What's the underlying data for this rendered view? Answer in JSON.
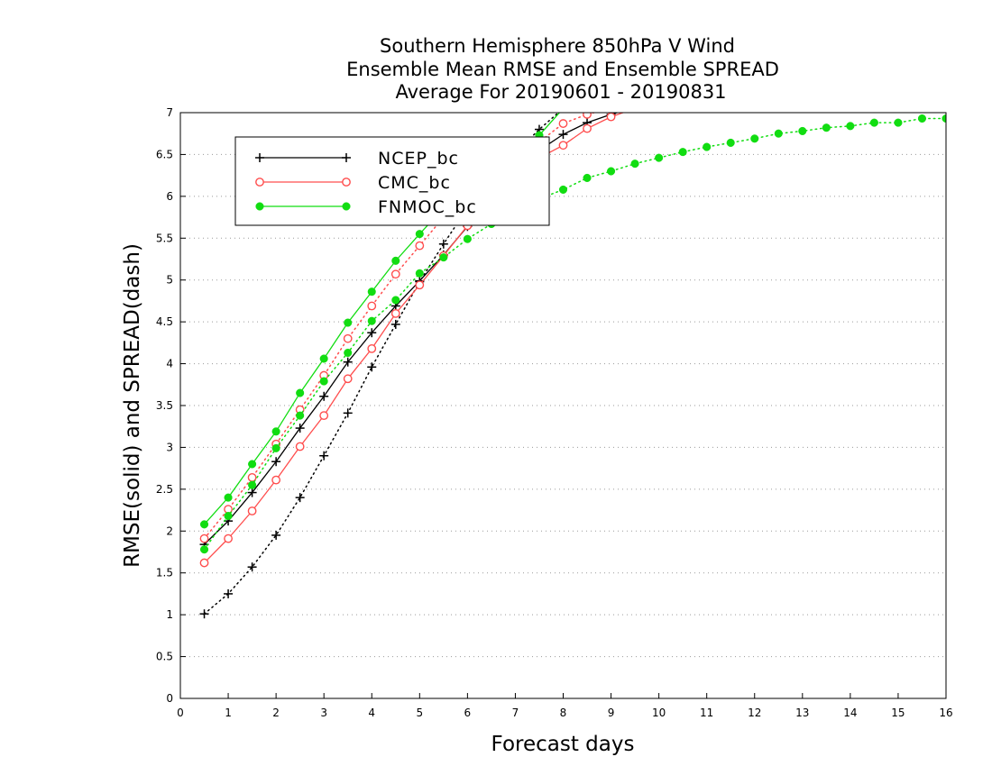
{
  "chart_data": {
    "type": "line",
    "title": [
      "Southern Hemisphere 850hPa V Wind",
      "Ensemble Mean RMSE and Ensemble SPREAD",
      "Average For 20190601 - 20190831"
    ],
    "xlabel": "Forecast days",
    "ylabel": "RMSE(solid) and SPREAD(dash)",
    "xlim": [
      0,
      16
    ],
    "ylim": [
      0,
      7
    ],
    "xticks": [
      0,
      1,
      2,
      3,
      4,
      5,
      6,
      7,
      8,
      9,
      10,
      11,
      12,
      13,
      14,
      15,
      16
    ],
    "xtick_labels": [
      "0",
      "1",
      "2",
      "3",
      "4",
      "5",
      "6",
      "7",
      "8",
      "9",
      "10",
      "11",
      "12",
      "13",
      "14",
      "15",
      "16"
    ],
    "yticks": [
      0,
      0.5,
      1,
      1.5,
      2,
      2.5,
      3,
      3.5,
      4,
      4.5,
      5,
      5.5,
      6,
      6.5,
      7
    ],
    "ytick_labels": [
      "0",
      "0.5",
      "1",
      "1.5",
      "2",
      "2.5",
      "3",
      "3.5",
      "4",
      "4.5",
      "5",
      "5.5",
      "6",
      "6.5",
      "7"
    ],
    "grid": "horizontal dotted",
    "legend_position": "top-left",
    "series": [
      {
        "name": "NCEP_bc",
        "color": "#000000",
        "marker": "plus",
        "rmse_x": [
          0.5,
          1,
          1.5,
          2,
          2.5,
          3,
          3.5,
          4,
          4.5,
          5,
          5.5,
          6,
          6.5,
          7,
          7.5,
          8,
          8.5,
          9,
          9.5
        ],
        "rmse_y": [
          1.84,
          2.12,
          2.46,
          2.83,
          3.23,
          3.61,
          4.02,
          4.37,
          4.69,
          4.99,
          5.3,
          5.64,
          6.0,
          6.33,
          6.55,
          6.74,
          6.88,
          6.98,
          7.06
        ],
        "spread_x": [
          0.5,
          1,
          1.5,
          2,
          2.5,
          3,
          3.5,
          4,
          4.5,
          5,
          5.5,
          6,
          6.5,
          7,
          7.5,
          8
        ],
        "spread_y": [
          1.01,
          1.25,
          1.57,
          1.95,
          2.4,
          2.9,
          3.41,
          3.96,
          4.47,
          4.98,
          5.43,
          5.86,
          6.21,
          6.52,
          6.8,
          7.05
        ]
      },
      {
        "name": "CMC_bc",
        "color": "#ff4d4d",
        "marker": "open-circle",
        "rmse_x": [
          0.5,
          1,
          1.5,
          2,
          2.5,
          3,
          3.5,
          4,
          4.5,
          5,
          5.5,
          6,
          6.5,
          7,
          7.5,
          8,
          8.5,
          9,
          9.5
        ],
        "rmse_y": [
          1.62,
          1.91,
          2.24,
          2.61,
          3.01,
          3.38,
          3.82,
          4.18,
          4.6,
          4.94,
          5.29,
          5.65,
          5.99,
          6.29,
          6.46,
          6.61,
          6.81,
          6.95,
          7.05
        ],
        "spread_x": [
          0.5,
          1,
          1.5,
          2,
          2.5,
          3,
          3.5,
          4,
          4.5,
          5,
          5.5,
          6,
          6.5,
          7,
          7.5,
          8,
          8.5,
          9
        ],
        "spread_y": [
          1.91,
          2.26,
          2.64,
          3.04,
          3.45,
          3.86,
          4.3,
          4.69,
          5.07,
          5.41,
          5.75,
          6.04,
          6.28,
          6.46,
          6.65,
          6.87,
          6.98,
          7.05
        ]
      },
      {
        "name": "FNMOC_bc",
        "color": "#11dd11",
        "marker": "filled-circle",
        "rmse_x": [
          0.5,
          1,
          1.5,
          2,
          2.5,
          3,
          3.5,
          4,
          4.5,
          5,
          5.5,
          6,
          6.5,
          7,
          7.5,
          8
        ],
        "rmse_y": [
          2.08,
          2.4,
          2.8,
          3.19,
          3.65,
          4.06,
          4.49,
          4.86,
          5.23,
          5.55,
          5.86,
          6.13,
          6.36,
          6.55,
          6.73,
          7.05
        ],
        "spread_x": [
          0.5,
          1,
          1.5,
          2,
          2.5,
          3,
          3.5,
          4,
          4.5,
          5,
          5.5,
          6,
          6.5,
          7,
          7.5,
          8,
          8.5,
          9,
          9.5,
          10,
          10.5,
          11,
          11.5,
          12,
          12.5,
          13,
          13.5,
          14,
          14.5,
          15,
          15.5,
          16
        ],
        "spread_y": [
          1.78,
          2.18,
          2.55,
          2.99,
          3.38,
          3.79,
          4.13,
          4.51,
          4.76,
          5.08,
          5.27,
          5.49,
          5.67,
          5.84,
          5.97,
          6.08,
          6.22,
          6.3,
          6.39,
          6.46,
          6.53,
          6.59,
          6.64,
          6.69,
          6.75,
          6.78,
          6.82,
          6.84,
          6.88,
          6.88,
          6.93,
          6.93
        ]
      }
    ]
  }
}
